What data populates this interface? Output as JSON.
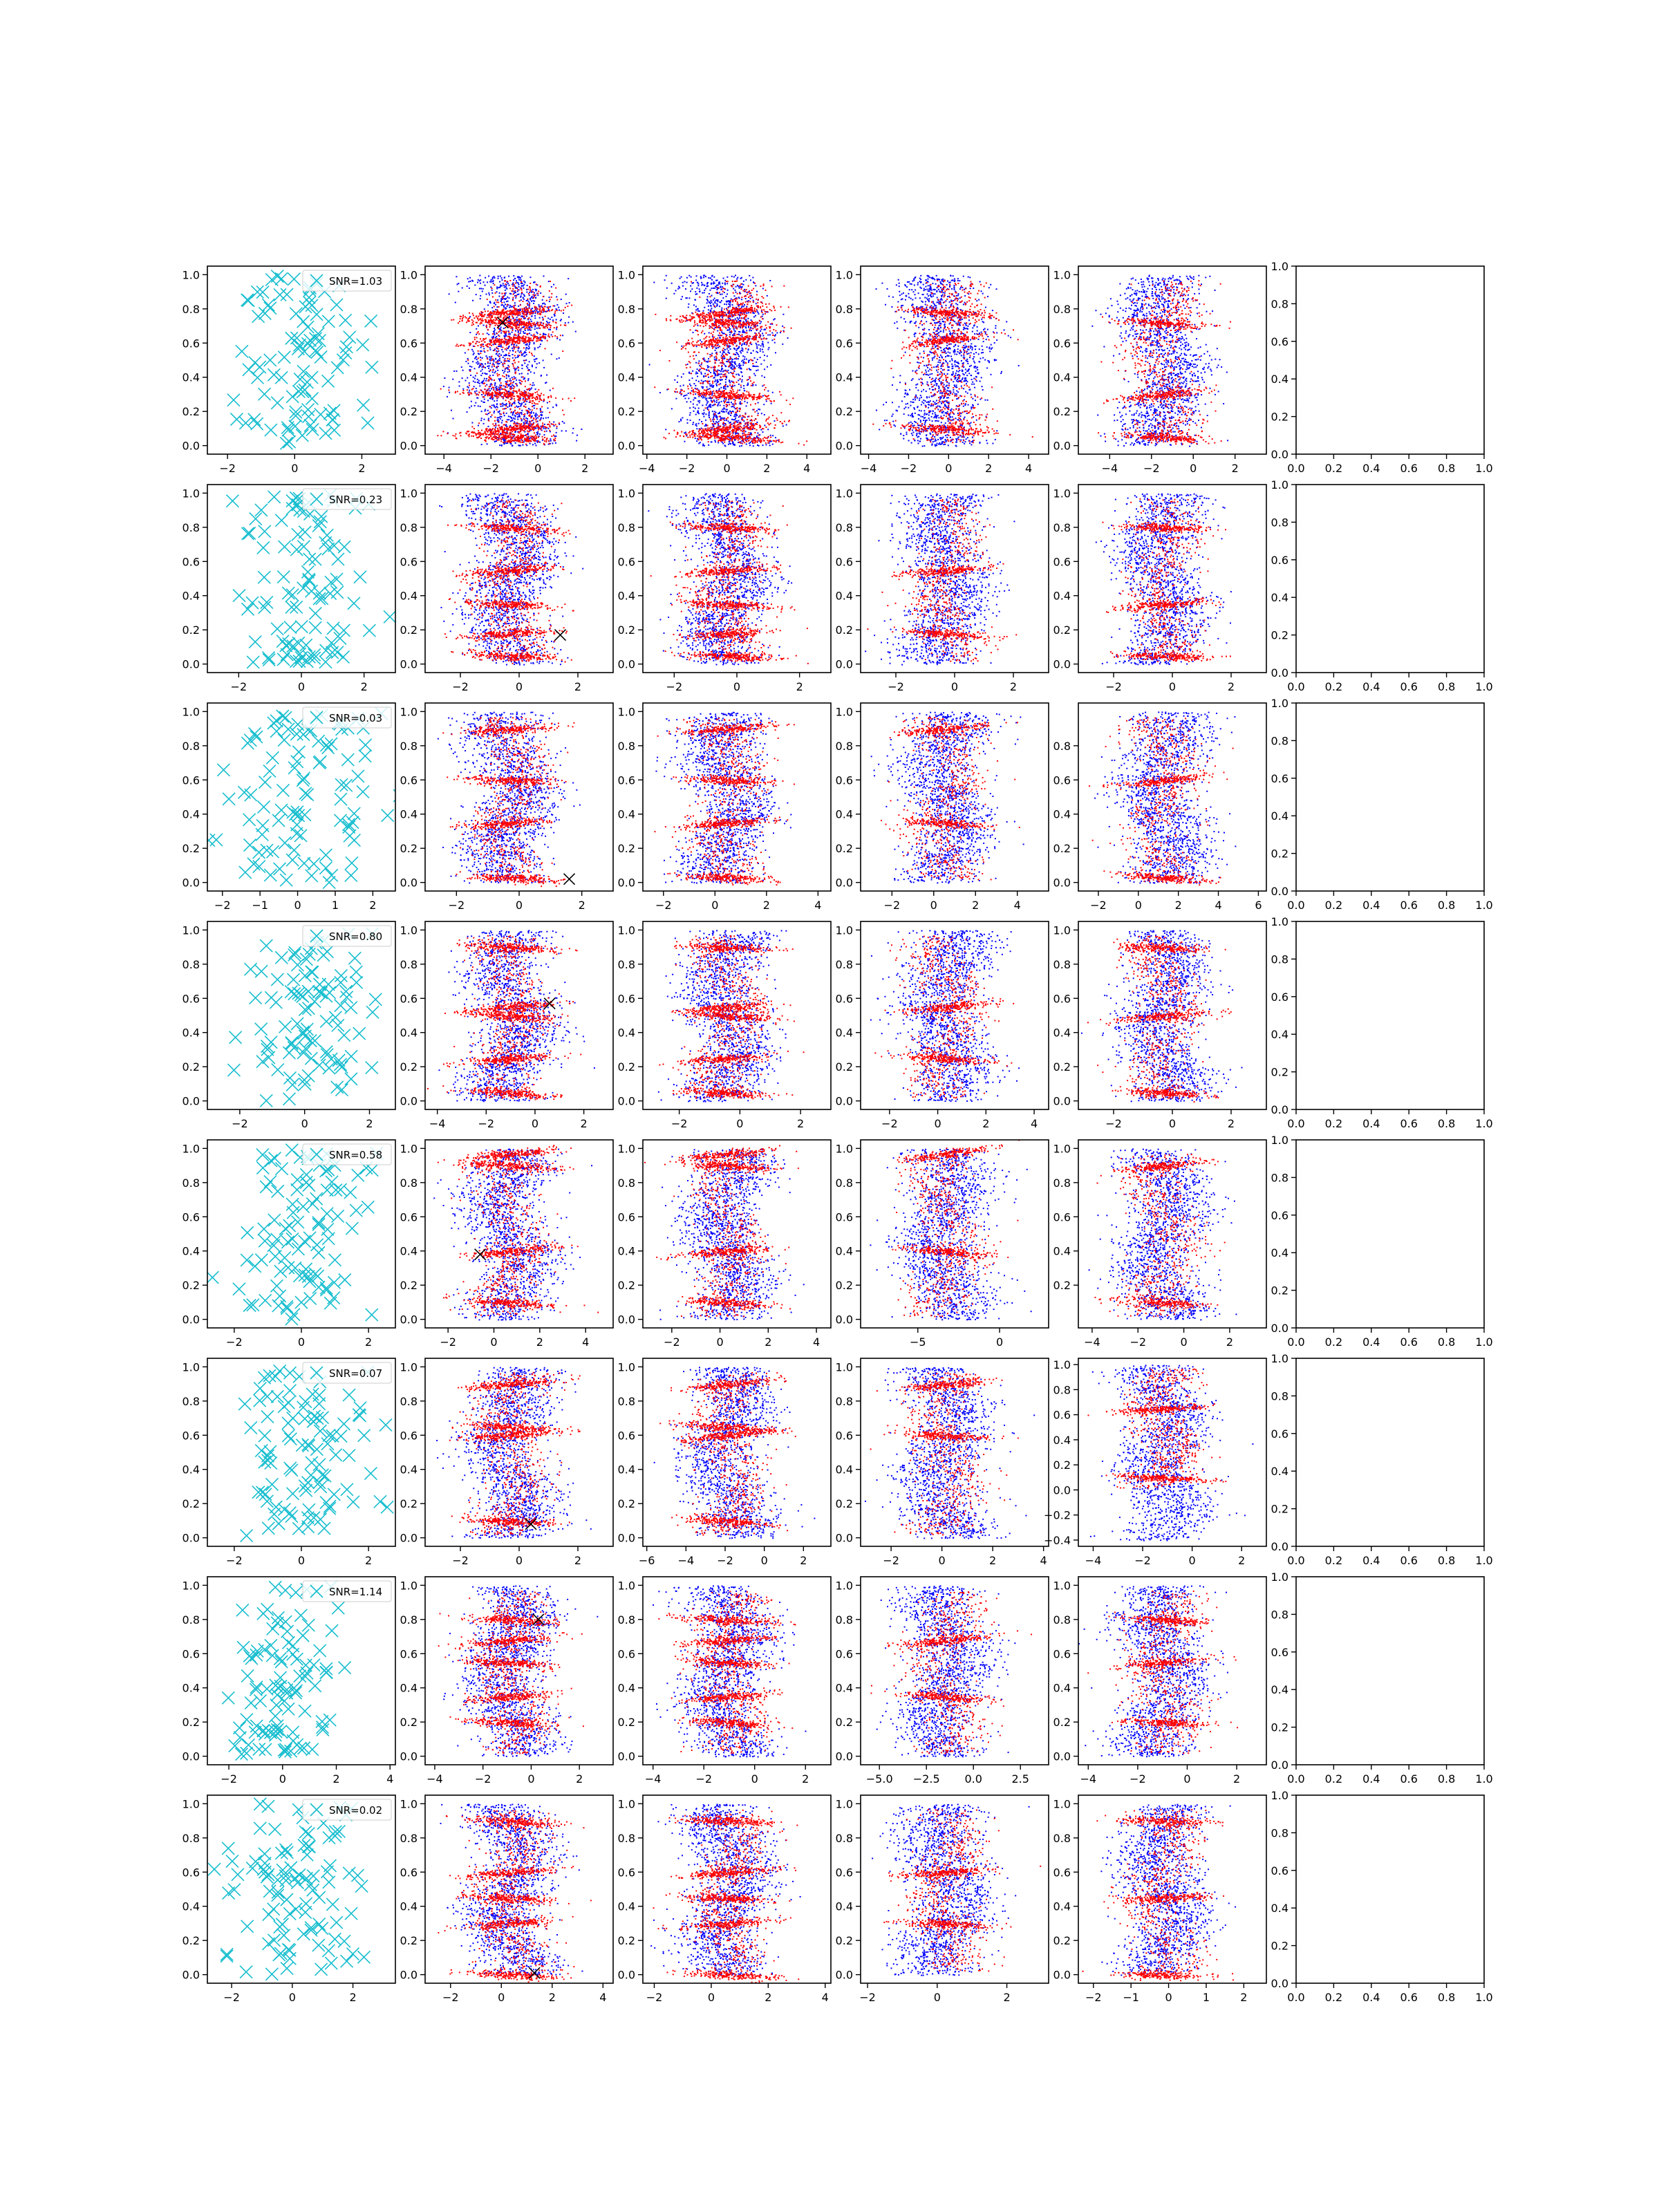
{
  "figure": {
    "type": "scatter grid",
    "rows": 8,
    "columns": 6,
    "axes_note": "column 1: cyan x-markers with SNR legend; columns 2-5: dense blue/red point clouds; column 6: empty axes 0.0-1.0"
  },
  "colors": {
    "markers": "#17becf",
    "blue_points": "#0000ff",
    "red_points": "#ff0000",
    "black_marker": "#000000",
    "axis": "#000000"
  },
  "chart_data": [
    {
      "row": 1,
      "snr_label": "SNR=1.03",
      "type": "scatter",
      "ylim": [
        -0.05,
        1.05
      ],
      "x_ticks": [
        [
          -2,
          0,
          2
        ],
        [
          -4,
          -2,
          0,
          2
        ],
        [
          -4,
          -2,
          0,
          2,
          4
        ],
        [
          -4,
          -2,
          0,
          2,
          4
        ],
        [
          -4,
          -2,
          0,
          2
        ],
        [
          0.0,
          0.2,
          0.4,
          0.6,
          0.8,
          1.0
        ]
      ],
      "x_ranges": [
        [
          -2.6,
          3.0
        ],
        [
          -4.8,
          3.2
        ],
        [
          -4.2,
          5.2
        ],
        [
          -4.4,
          5.0
        ],
        [
          -5.5,
          3.5
        ],
        [
          0,
          1
        ]
      ],
      "y_ticks": [
        0.0,
        0.2,
        0.4,
        0.6,
        0.8,
        1.0
      ],
      "red_bands": [
        0.05,
        0.1,
        0.3,
        0.62,
        0.72,
        0.78
      ],
      "black_marker": [
        -1.5,
        0.72
      ]
    },
    {
      "row": 2,
      "snr_label": "SNR=0.23",
      "type": "scatter",
      "ylim": [
        -0.05,
        1.05
      ],
      "x_ticks": [
        [
          -2,
          0,
          2
        ],
        [
          -2,
          0,
          2
        ],
        [
          -2,
          0,
          2
        ],
        [
          -2,
          0,
          2
        ],
        [
          -2,
          0,
          2
        ],
        [
          0.0,
          0.2,
          0.4,
          0.6,
          0.8,
          1.0
        ]
      ],
      "x_ranges": [
        [
          -3.0,
          3.0
        ],
        [
          -3.2,
          3.2
        ],
        [
          -3.0,
          3.0
        ],
        [
          -3.2,
          3.2
        ],
        [
          -3.2,
          3.2
        ],
        [
          0,
          1
        ]
      ],
      "y_ticks": [
        0.0,
        0.2,
        0.4,
        0.6,
        0.8,
        1.0
      ],
      "red_bands": [
        0.05,
        0.18,
        0.35,
        0.55,
        0.8
      ],
      "black_marker": [
        1.4,
        0.17
      ]
    },
    {
      "row": 3,
      "snr_label": "SNR=0.03",
      "type": "scatter",
      "ylim": [
        -0.05,
        1.05
      ],
      "x_ticks": [
        [
          -2,
          -1,
          0,
          1,
          2
        ],
        [
          -2,
          0,
          2
        ],
        [
          -2,
          0,
          2,
          4
        ],
        [
          -2,
          0,
          2,
          4
        ],
        [
          -2,
          0,
          2,
          4,
          6
        ],
        [
          0.0,
          0.2,
          0.4,
          0.6,
          0.8,
          1.0
        ]
      ],
      "x_ranges": [
        [
          -2.4,
          2.6
        ],
        [
          -3.0,
          3.0
        ],
        [
          -2.8,
          4.5
        ],
        [
          -3.5,
          5.5
        ],
        [
          -3.0,
          6.4
        ],
        [
          0,
          1
        ]
      ],
      "y_ticks": [
        0.0,
        0.2,
        0.4,
        0.6,
        0.8,
        1.0
      ],
      "y_ticks_col5": [
        0.0,
        0.2,
        0.4,
        0.6,
        0.8
      ],
      "red_bands": [
        0.03,
        0.35,
        0.6,
        0.9
      ],
      "black_marker": [
        1.6,
        0.02
      ]
    },
    {
      "row": 4,
      "snr_label": "SNR=0.80",
      "type": "scatter",
      "ylim": [
        -0.05,
        1.05
      ],
      "x_ticks": [
        [
          -2,
          0,
          2
        ],
        [
          -4,
          -2,
          0,
          2
        ],
        [
          -2,
          0,
          2
        ],
        [
          -2,
          0,
          2,
          4
        ],
        [
          -2,
          0,
          2
        ],
        [
          0.0,
          0.2,
          0.4,
          0.6,
          0.8,
          1.0
        ]
      ],
      "x_ranges": [
        [
          -3.0,
          2.8
        ],
        [
          -4.5,
          3.2
        ],
        [
          -3.2,
          3.0
        ],
        [
          -3.2,
          4.6
        ],
        [
          -3.2,
          3.2
        ],
        [
          0,
          1
        ]
      ],
      "y_ticks": [
        0.0,
        0.2,
        0.4,
        0.6,
        0.8,
        1.0
      ],
      "red_bands": [
        0.05,
        0.25,
        0.5,
        0.55,
        0.9
      ],
      "black_marker": [
        0.6,
        0.57
      ]
    },
    {
      "row": 5,
      "snr_label": "SNR=0.58",
      "type": "scatter",
      "ylim": [
        -0.05,
        1.05
      ],
      "x_ticks": [
        [
          -2,
          0,
          2
        ],
        [
          -2,
          0,
          2,
          4
        ],
        [
          -2,
          0,
          2,
          4
        ],
        [
          -5,
          0
        ],
        [
          -4,
          -2,
          0,
          2
        ],
        [
          0.0,
          0.2,
          0.4,
          0.6,
          0.8,
          1.0
        ]
      ],
      "x_ranges": [
        [
          -2.8,
          2.8
        ],
        [
          -3.0,
          5.2
        ],
        [
          -3.2,
          4.6
        ],
        [
          -8.5,
          3.0
        ],
        [
          -4.6,
          3.6
        ],
        [
          0,
          1
        ]
      ],
      "y_ticks": [
        0.0,
        0.2,
        0.4,
        0.6,
        0.8,
        1.0
      ],
      "y_ticks_col4": [
        0.0,
        0.2,
        0.4,
        0.6,
        0.8,
        1.0
      ],
      "y_ticks_col5": [
        0.2,
        0.4,
        0.6,
        0.8,
        1.0
      ],
      "red_bands": [
        0.1,
        0.4,
        0.9,
        0.97
      ],
      "black_marker": [
        -0.6,
        0.38
      ]
    },
    {
      "row": 6,
      "snr_label": "SNR=0.07",
      "type": "scatter",
      "ylim": [
        -0.05,
        1.05
      ],
      "x_ticks": [
        [
          -2,
          0,
          2
        ],
        [
          -2,
          0,
          2
        ],
        [
          -6,
          -4,
          -2,
          0,
          2
        ],
        [
          -2,
          0,
          2,
          4
        ],
        [
          -4,
          -2,
          0,
          2
        ],
        [
          0.0,
          0.2,
          0.4,
          0.6,
          0.8,
          1.0
        ]
      ],
      "x_ranges": [
        [
          -2.8,
          2.8
        ],
        [
          -3.2,
          3.2
        ],
        [
          -6.2,
          3.4
        ],
        [
          -3.2,
          4.2
        ],
        [
          -4.6,
          3.0
        ],
        [
          0,
          1
        ]
      ],
      "y_ticks": [
        0.0,
        0.2,
        0.4,
        0.6,
        0.8,
        1.0
      ],
      "y_ticks_col5": [
        -0.4,
        -0.2,
        0.0,
        0.2,
        0.4,
        0.6,
        0.8,
        1.0
      ],
      "red_bands": [
        0.1,
        0.6,
        0.65,
        0.9
      ],
      "black_marker": [
        0.4,
        0.08
      ]
    },
    {
      "row": 7,
      "snr_label": "SNR=1.14",
      "type": "scatter",
      "ylim": [
        -0.05,
        1.05
      ],
      "x_ticks": [
        [
          -2,
          0,
          2,
          4
        ],
        [
          -4,
          -2,
          0,
          2
        ],
        [
          -4,
          -2,
          0,
          2
        ],
        [
          -5.0,
          -2.5,
          0.0,
          2.5
        ],
        [
          -4,
          -2,
          0,
          2
        ],
        [
          0.0,
          0.2,
          0.4,
          0.6,
          0.8,
          1.0
        ]
      ],
      "x_ranges": [
        [
          -2.8,
          4.2
        ],
        [
          -4.4,
          3.4
        ],
        [
          -4.4,
          3.0
        ],
        [
          -6.0,
          4.0
        ],
        [
          -4.4,
          3.2
        ],
        [
          0,
          1
        ]
      ],
      "y_ticks": [
        0.0,
        0.2,
        0.4,
        0.6,
        0.8,
        1.0
      ],
      "red_bands": [
        0.2,
        0.35,
        0.55,
        0.68,
        0.8
      ],
      "black_marker": [
        0.3,
        0.8
      ]
    },
    {
      "row": 8,
      "snr_label": "SNR=0.02",
      "type": "scatter",
      "ylim": [
        -0.05,
        1.05
      ],
      "x_ticks": [
        [
          -2,
          0,
          2
        ],
        [
          -2,
          0,
          2,
          4
        ],
        [
          -2,
          0,
          2,
          4
        ],
        [
          -2,
          0,
          2
        ],
        [
          -2,
          -1,
          0,
          1,
          2
        ],
        [
          0.0,
          0.2,
          0.4,
          0.6,
          0.8,
          1.0
        ]
      ],
      "x_ranges": [
        [
          -2.8,
          3.4
        ],
        [
          -3.0,
          4.4
        ],
        [
          -2.4,
          4.2
        ],
        [
          -2.2,
          3.2
        ],
        [
          -2.4,
          2.6
        ],
        [
          0,
          1
        ]
      ],
      "y_ticks": [
        0.0,
        0.2,
        0.4,
        0.6,
        0.8,
        1.0
      ],
      "red_bands": [
        0.0,
        0.3,
        0.45,
        0.6,
        0.9
      ],
      "black_marker": [
        1.3,
        0.01
      ]
    }
  ]
}
